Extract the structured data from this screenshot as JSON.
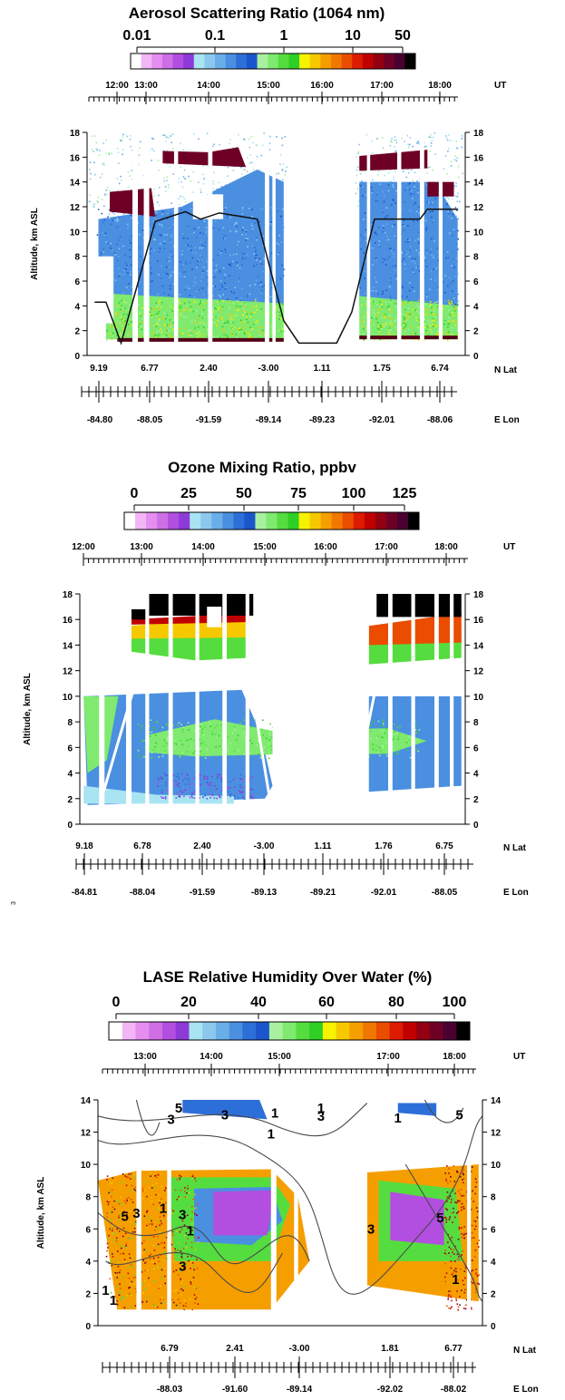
{
  "colorscale": [
    "#ffffff",
    "#f2b5f5",
    "#e58ef0",
    "#cf6fe6",
    "#b24ee0",
    "#8e3ad8",
    "#a8e4f2",
    "#8cc8ee",
    "#6aaee9",
    "#4b8fe0",
    "#2d6fd8",
    "#1b55cc",
    "#a8f0a0",
    "#7fea6f",
    "#55dd3f",
    "#2fcf25",
    "#f6f200",
    "#f6c800",
    "#f59e00",
    "#f07800",
    "#ea4c00",
    "#dd1b00",
    "#c00000",
    "#920012",
    "#6e0026",
    "#4a0030",
    "#000000"
  ],
  "chart_data": [
    {
      "type": "heatmap",
      "title": "Aerosol Scattering Ratio (1064 nm)",
      "colorbar_ticks": [
        "0.01",
        "0.1",
        "1",
        "10",
        "50"
      ],
      "colorbar_scale": "log",
      "ut_ticks": [
        "12:00",
        "13:00",
        "14:00",
        "15:00",
        "16:00",
        "17:00",
        "18:00"
      ],
      "ut_label": "UT",
      "ylabel": "Altitude, km ASL",
      "yticks": [
        "0",
        "2",
        "4",
        "6",
        "8",
        "10",
        "12",
        "14",
        "16",
        "18"
      ],
      "ylim": [
        0,
        18
      ],
      "lat_ticks": [
        "9.19",
        "6.77",
        "2.40",
        "-3.00",
        "1.11",
        "1.75",
        "6.74"
      ],
      "lat_label": "N Lat",
      "lon_ticks": [
        "-84.80",
        "-88.05",
        "-91.59",
        "-89.14",
        "-89.23",
        "-92.01",
        "-88.06"
      ],
      "lon_label": "E Lon"
    },
    {
      "type": "heatmap",
      "title": "Ozone Mixing Ratio, ppbv",
      "colorbar_ticks": [
        "0",
        "25",
        "50",
        "75",
        "100",
        "125"
      ],
      "colorbar_scale": "linear",
      "ut_ticks": [
        "12:00",
        "13:00",
        "14:00",
        "15:00",
        "16:00",
        "17:00",
        "18:00"
      ],
      "ut_label": "UT",
      "ylabel": "Altitude, km ASL",
      "yticks": [
        "0",
        "2",
        "4",
        "6",
        "8",
        "10",
        "12",
        "14",
        "16",
        "18"
      ],
      "ylim": [
        0,
        18
      ],
      "lat_ticks": [
        "9.18",
        "6.78",
        "2.40",
        "-3.00",
        "1.11",
        "1.76",
        "6.75"
      ],
      "lat_label": "N Lat",
      "lon_ticks": [
        "-84.81",
        "-88.04",
        "-91.59",
        "-89.13",
        "-89.21",
        "-92.01",
        "-88.05"
      ],
      "lon_label": "E Lon"
    },
    {
      "type": "heatmap",
      "title": "LASE Relative Humidity Over Water (%)",
      "colorbar_ticks": [
        "0",
        "20",
        "40",
        "60",
        "80",
        "100"
      ],
      "colorbar_scale": "linear",
      "ut_ticks": [
        "13:00",
        "14:00",
        "15:00",
        "17:00",
        "18:00"
      ],
      "ut_label": "UT",
      "ylabel": "Altitude, km ASL",
      "yticks": [
        "0",
        "2",
        "4",
        "6",
        "8",
        "10",
        "12",
        "14"
      ],
      "ylim": [
        0,
        14
      ],
      "lat_ticks": [
        "6.79",
        "2.41",
        "-3.00",
        "1.81",
        "6.77"
      ],
      "lat_label": "N Lat",
      "lon_ticks": [
        "-88.03",
        "-91.60",
        "-89.14",
        "-92.02",
        "-88.02"
      ],
      "lon_label": "E Lon",
      "contour_labels": [
        "3",
        "5",
        "3",
        "1",
        "3",
        "1",
        "1",
        "5",
        "1",
        "1",
        "5",
        "3",
        "3",
        "1",
        "3",
        "1",
        "3",
        "5",
        "1",
        "1"
      ]
    }
  ],
  "page_mark": "3"
}
